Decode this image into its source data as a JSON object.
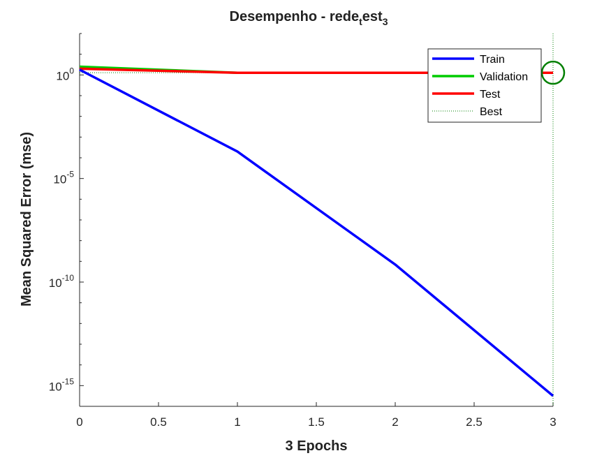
{
  "chart_data": {
    "type": "line",
    "title": "Desempenho - rede",
    "title_sub": "t",
    "title_mid": "est",
    "title_sub2": "3",
    "xlabel": "3 Epochs",
    "ylabel": "Mean Squared Error  (mse)",
    "xlim": [
      0,
      3
    ],
    "ylim_log10": [
      -16,
      2
    ],
    "yscale": "log",
    "grid": false,
    "legend_position": "top-right",
    "x_ticks": [
      {
        "value": 0,
        "label": "0"
      },
      {
        "value": 0.5,
        "label": "0.5"
      },
      {
        "value": 1,
        "label": "1"
      },
      {
        "value": 1.5,
        "label": "1.5"
      },
      {
        "value": 2,
        "label": "2"
      },
      {
        "value": 2.5,
        "label": "2.5"
      },
      {
        "value": 3,
        "label": "3"
      }
    ],
    "y_ticks": [
      {
        "exp": 0,
        "base": "10",
        "sup": "0"
      },
      {
        "exp": -5,
        "base": "10",
        "sup": "-5"
      },
      {
        "exp": -10,
        "base": "10",
        "sup": "-10"
      },
      {
        "exp": -15,
        "base": "10",
        "sup": "-15"
      }
    ],
    "series": [
      {
        "name": "Train",
        "color": "#0000ff",
        "x": [
          0,
          1,
          2,
          3
        ],
        "y": [
          1.8,
          0.0002,
          7e-10,
          3.2e-16
        ]
      },
      {
        "name": "Validation",
        "color": "#00cc00",
        "x": [
          0,
          1,
          3
        ],
        "y": [
          2.5,
          1.28,
          1.28
        ]
      },
      {
        "name": "Test",
        "color": "#ff0000",
        "x": [
          0,
          1,
          3
        ],
        "y": [
          2.0,
          1.28,
          1.28
        ]
      }
    ],
    "best": {
      "name": "Best",
      "x": 3,
      "y": 1.28,
      "color": "#007f00"
    }
  }
}
